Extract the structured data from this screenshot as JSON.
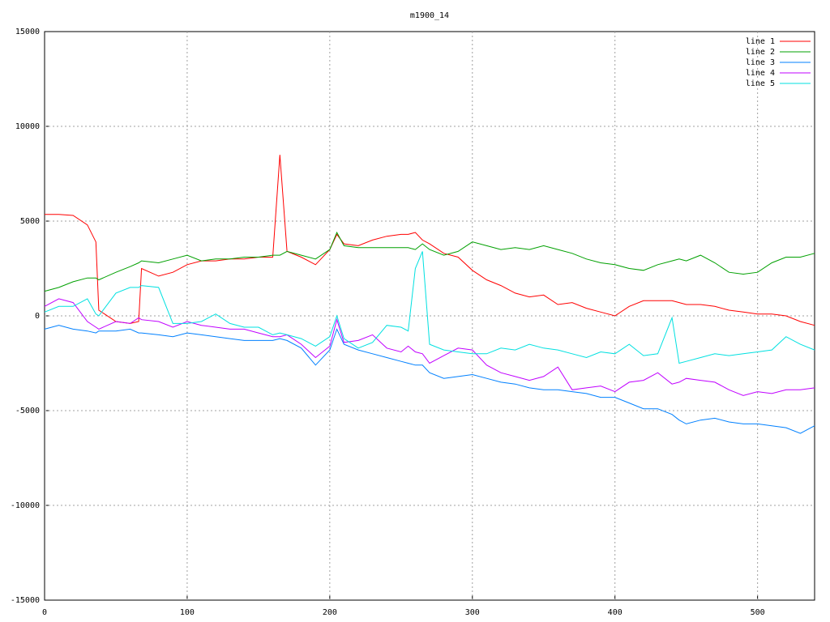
{
  "chart_data": {
    "type": "line",
    "title": "m1900_14",
    "x": [
      0,
      10,
      20,
      30,
      36,
      38,
      50,
      60,
      66,
      68,
      80,
      90,
      100,
      110,
      120,
      130,
      140,
      150,
      160,
      165,
      170,
      180,
      190,
      200,
      205,
      210,
      220,
      230,
      240,
      250,
      255,
      260,
      265,
      270,
      280,
      290,
      300,
      310,
      320,
      330,
      340,
      350,
      360,
      370,
      380,
      390,
      400,
      410,
      420,
      430,
      440,
      445,
      450,
      460,
      470,
      480,
      490,
      500,
      510,
      520,
      530,
      540
    ],
    "series": [
      {
        "name": "line 1",
        "color": "#ff0000",
        "values": [
          5350,
          5350,
          5300,
          4800,
          3900,
          300,
          -300,
          -400,
          -300,
          2500,
          2100,
          2300,
          2700,
          2900,
          2900,
          3000,
          3000,
          3100,
          3100,
          8500,
          3400,
          3100,
          2700,
          3500,
          4300,
          3800,
          3700,
          4000,
          4200,
          4300,
          4300,
          4400,
          4000,
          3800,
          3300,
          3100,
          2400,
          1900,
          1600,
          1200,
          1000,
          1100,
          600,
          700,
          400,
          200,
          0,
          500,
          800,
          800,
          800,
          700,
          600,
          600,
          500,
          300,
          200,
          100,
          100,
          0,
          -300,
          -500
        ]
      },
      {
        "name": "line 2",
        "color": "#00a000",
        "values": [
          1300,
          1500,
          1800,
          2000,
          2000,
          1900,
          2300,
          2600,
          2800,
          2900,
          2800,
          3000,
          3200,
          2900,
          3000,
          3000,
          3100,
          3100,
          3200,
          3200,
          3400,
          3200,
          3000,
          3500,
          4400,
          3700,
          3600,
          3600,
          3600,
          3600,
          3600,
          3500,
          3800,
          3500,
          3200,
          3400,
          3900,
          3700,
          3500,
          3600,
          3500,
          3700,
          3500,
          3300,
          3000,
          2800,
          2700,
          2500,
          2400,
          2700,
          2900,
          3000,
          2900,
          3200,
          2800,
          2300,
          2200,
          2300,
          2800,
          3100,
          3100,
          3300
        ]
      },
      {
        "name": "line 3",
        "color": "#0080ff",
        "values": [
          -700,
          -500,
          -700,
          -800,
          -900,
          -800,
          -800,
          -700,
          -900,
          -900,
          -1000,
          -1100,
          -900,
          -1000,
          -1100,
          -1200,
          -1300,
          -1300,
          -1300,
          -1200,
          -1300,
          -1700,
          -2600,
          -1800,
          -700,
          -1500,
          -1800,
          -2000,
          -2200,
          -2400,
          -2500,
          -2600,
          -2600,
          -3000,
          -3300,
          -3200,
          -3100,
          -3300,
          -3500,
          -3600,
          -3800,
          -3900,
          -3900,
          -4000,
          -4100,
          -4300,
          -4300,
          -4600,
          -4900,
          -4900,
          -5200,
          -5500,
          -5700,
          -5500,
          -5400,
          -5600,
          -5700,
          -5700,
          -5800,
          -5900,
          -6200,
          -5800
        ]
      },
      {
        "name": "line 4",
        "color": "#c000ff",
        "values": [
          500,
          900,
          700,
          -300,
          -600,
          -700,
          -300,
          -400,
          -100,
          -200,
          -300,
          -600,
          -300,
          -500,
          -600,
          -700,
          -700,
          -900,
          -1100,
          -1100,
          -1000,
          -1500,
          -2200,
          -1600,
          -200,
          -1400,
          -1300,
          -1000,
          -1700,
          -1900,
          -1600,
          -1900,
          -2000,
          -2500,
          -2100,
          -1700,
          -1800,
          -2600,
          -3000,
          -3200,
          -3400,
          -3200,
          -2700,
          -3900,
          -3800,
          -3700,
          -4000,
          -3500,
          -3400,
          -3000,
          -3600,
          -3500,
          -3300,
          -3400,
          -3500,
          -3900,
          -4200,
          -4000,
          -4100,
          -3900,
          -3900,
          -3800
        ]
      },
      {
        "name": "line 5",
        "color": "#00e0e0",
        "values": [
          200,
          500,
          500,
          900,
          100,
          0,
          1200,
          1500,
          1500,
          1600,
          1500,
          -400,
          -400,
          -300,
          100,
          -400,
          -600,
          -600,
          -1000,
          -900,
          -1000,
          -1200,
          -1600,
          -1100,
          0,
          -1200,
          -1700,
          -1400,
          -500,
          -600,
          -800,
          2500,
          3400,
          -1500,
          -1800,
          -1900,
          -2000,
          -2000,
          -1700,
          -1800,
          -1500,
          -1700,
          -1800,
          -2000,
          -2200,
          -1900,
          -2000,
          -1500,
          -2100,
          -2000,
          -100,
          -2500,
          -2400,
          -2200,
          -2000,
          -2100,
          -2000,
          -1900,
          -1800,
          -1100,
          -1500,
          -1800
        ]
      }
    ],
    "xlim": [
      0,
      540
    ],
    "xticks": [
      0,
      100,
      200,
      300,
      400,
      500
    ],
    "ylim": [
      -15000,
      15000
    ],
    "yticks": [
      -15000,
      -10000,
      -5000,
      0,
      5000,
      10000,
      15000
    ],
    "grid": true,
    "legend": "top-right"
  }
}
